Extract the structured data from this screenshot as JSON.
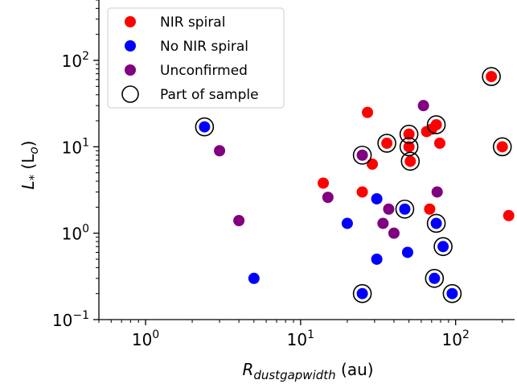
{
  "chart_data": {
    "type": "scatter",
    "xscale": "log",
    "yscale": "log",
    "xlim": [
      0.5,
      240
    ],
    "ylim": [
      0.1,
      500
    ],
    "xlabel": {
      "sym": "R",
      "sub": "dustgapwidth",
      "unit": " (au)"
    },
    "ylabel": {
      "sym": "L",
      "sub": "*",
      "unit_pre": " (L",
      "unit_sub": "o",
      "unit_post": ")"
    },
    "x_ticks": [
      {
        "value": 1,
        "mant": "10",
        "exp": "0"
      },
      {
        "value": 10,
        "mant": "10",
        "exp": "1"
      },
      {
        "value": 100,
        "mant": "10",
        "exp": "2"
      }
    ],
    "y_ticks": [
      {
        "value": 0.1,
        "mant": "10",
        "exp": "−1"
      },
      {
        "value": 1,
        "mant": "10",
        "exp": "0"
      },
      {
        "value": 10,
        "mant": "10",
        "exp": "1"
      },
      {
        "value": 100,
        "mant": "10",
        "exp": "2"
      }
    ],
    "grid": false,
    "legend_position": "upper-left",
    "series": [
      {
        "name": "NIR spiral",
        "color": "#ff0000",
        "points": [
          {
            "x": 14,
            "y": 3.8
          },
          {
            "x": 25,
            "y": 3
          },
          {
            "x": 27,
            "y": 25
          },
          {
            "x": 29,
            "y": 6.3
          },
          {
            "x": 36,
            "y": 11
          },
          {
            "x": 50,
            "y": 14
          },
          {
            "x": 50,
            "y": 10
          },
          {
            "x": 51,
            "y": 6.8
          },
          {
            "x": 65,
            "y": 15
          },
          {
            "x": 68,
            "y": 1.9
          },
          {
            "x": 70,
            "y": 16
          },
          {
            "x": 75,
            "y": 18
          },
          {
            "x": 79,
            "y": 11
          },
          {
            "x": 170,
            "y": 65
          },
          {
            "x": 200,
            "y": 10
          },
          {
            "x": 220,
            "y": 1.6
          }
        ]
      },
      {
        "name": "No NIR spiral",
        "color": "#0000ff",
        "points": [
          {
            "x": 2.4,
            "y": 17
          },
          {
            "x": 5,
            "y": 0.3
          },
          {
            "x": 20,
            "y": 1.3
          },
          {
            "x": 25,
            "y": 0.2
          },
          {
            "x": 31,
            "y": 2.5
          },
          {
            "x": 31,
            "y": 0.5
          },
          {
            "x": 47,
            "y": 1.9
          },
          {
            "x": 49,
            "y": 0.6
          },
          {
            "x": 73,
            "y": 0.3
          },
          {
            "x": 75,
            "y": 1.3
          },
          {
            "x": 83,
            "y": 0.7
          },
          {
            "x": 95,
            "y": 0.2
          }
        ]
      },
      {
        "name": "Unconfirmed",
        "color": "#800080",
        "points": [
          {
            "x": 3,
            "y": 9
          },
          {
            "x": 4,
            "y": 1.4
          },
          {
            "x": 15,
            "y": 2.6
          },
          {
            "x": 25,
            "y": 8
          },
          {
            "x": 34,
            "y": 1.3
          },
          {
            "x": 37,
            "y": 1.9
          },
          {
            "x": 40,
            "y": 1
          },
          {
            "x": 62,
            "y": 30
          },
          {
            "x": 76,
            "y": 3
          }
        ]
      }
    ],
    "part_of_sample": {
      "name": "Part of sample",
      "points": [
        {
          "x": 2.4,
          "y": 17
        },
        {
          "x": 25,
          "y": 8
        },
        {
          "x": 25,
          "y": 0.2
        },
        {
          "x": 36,
          "y": 11
        },
        {
          "x": 47,
          "y": 1.9
        },
        {
          "x": 50,
          "y": 14
        },
        {
          "x": 50,
          "y": 10
        },
        {
          "x": 51,
          "y": 6.8
        },
        {
          "x": 73,
          "y": 0.3
        },
        {
          "x": 75,
          "y": 18
        },
        {
          "x": 75,
          "y": 1.3
        },
        {
          "x": 83,
          "y": 0.7
        },
        {
          "x": 95,
          "y": 0.2
        },
        {
          "x": 170,
          "y": 65
        },
        {
          "x": 200,
          "y": 10
        }
      ]
    }
  }
}
